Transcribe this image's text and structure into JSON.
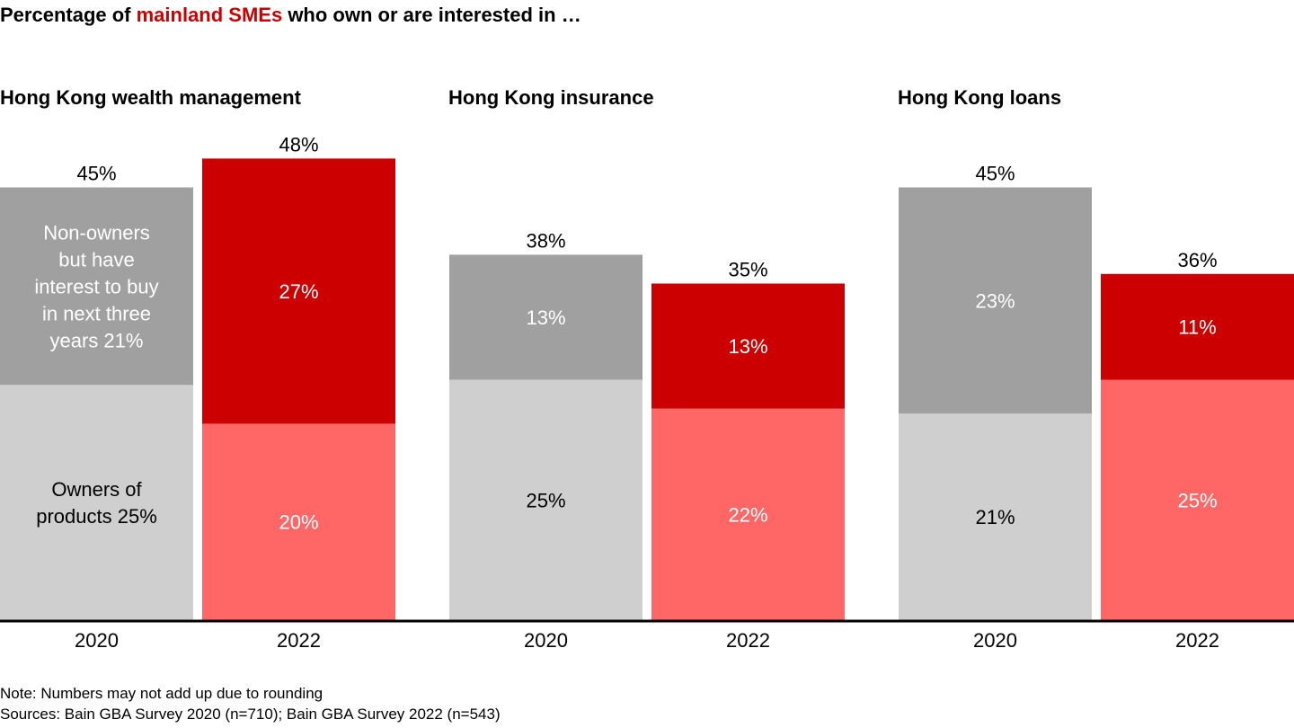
{
  "chart_data": {
    "type": "bar",
    "stacked": true,
    "title_parts": [
      "Percentage of ",
      "mainland SMEs",
      " who own or are interested in …"
    ],
    "title": "Percentage of mainland SMEs who own or are interested in …",
    "xlabel": "",
    "ylabel": "",
    "ylim": [
      0,
      50
    ],
    "grid": false,
    "legend": "none (inline labels)",
    "colors": {
      "2020_owners": "#cfcfcf",
      "2020_nonowners": "#a0a0a0",
      "2022_owners": "#ff6666",
      "2022_nonowners": "#cc0000",
      "highlight": "#cc0000"
    },
    "series_names": [
      "Owners of products",
      "Non-owners but have interest to buy in next three years"
    ],
    "inline_labels": {
      "owners": "Owners of products 25%",
      "owners_lines": [
        "Owners of",
        "products 25%"
      ],
      "nonowners_lines": [
        "Non-owners",
        "but have",
        "interest to buy",
        "in next three",
        "years 21%"
      ]
    },
    "panels": [
      {
        "title": "Hong Kong wealth management",
        "bars": [
          {
            "category": "2020",
            "owners": 25,
            "nonowners": 21,
            "total": 45,
            "owners_label": "25%",
            "nonowners_label": "21%",
            "total_label": "45%"
          },
          {
            "category": "2022",
            "owners": 20,
            "nonowners": 27,
            "total": 48,
            "owners_label": "20%",
            "nonowners_label": "27%",
            "total_label": "48%"
          }
        ]
      },
      {
        "title": "Hong Kong insurance",
        "bars": [
          {
            "category": "2020",
            "owners": 25,
            "nonowners": 13,
            "total": 38,
            "owners_label": "25%",
            "nonowners_label": "13%",
            "total_label": "38%"
          },
          {
            "category": "2022",
            "owners": 22,
            "nonowners": 13,
            "total": 35,
            "owners_label": "22%",
            "nonowners_label": "13%",
            "total_label": "35%"
          }
        ]
      },
      {
        "title": "Hong Kong loans",
        "bars": [
          {
            "category": "2020",
            "owners": 21,
            "nonowners": 23,
            "total": 45,
            "owners_label": "21%",
            "nonowners_label": "23%",
            "total_label": "45%"
          },
          {
            "category": "2022",
            "owners": 25,
            "nonowners": 11,
            "total": 36,
            "owners_label": "25%",
            "nonowners_label": "11%",
            "total_label": "36%"
          }
        ]
      }
    ]
  },
  "footer": {
    "note": "Note: Numbers may not add up due to rounding",
    "sources": "Sources: Bain GBA Survey 2020 (n=710); Bain GBA Survey 2022 (n=543)"
  }
}
